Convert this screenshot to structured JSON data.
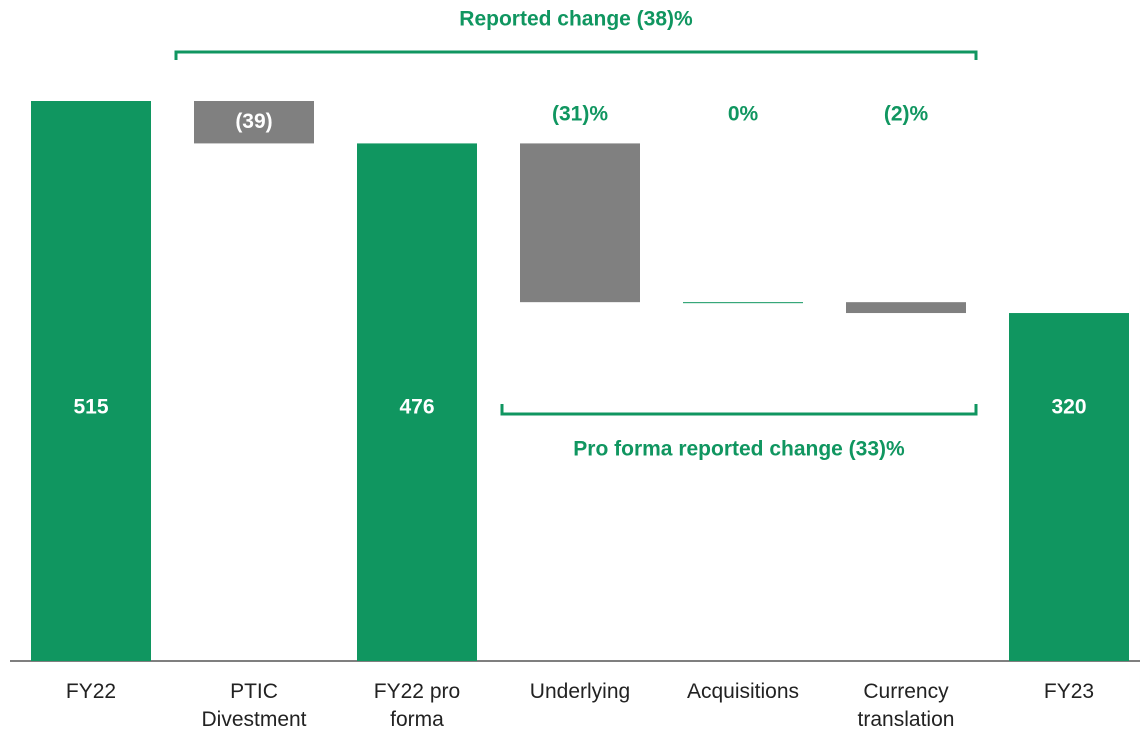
{
  "chart_data": {
    "type": "waterfall",
    "categories": [
      "FY22",
      "PTIC Divestment",
      "FY22 pro forma",
      "Underlying",
      "Acquisitions",
      "Currency translation",
      "FY23"
    ],
    "values": [
      515,
      -39,
      476,
      -146,
      0,
      -10,
      320
    ],
    "measures": [
      "total",
      "relative",
      "total",
      "relative",
      "relative",
      "relative",
      "total"
    ],
    "value_labels": [
      "515",
      "(39)",
      "476",
      null,
      null,
      null,
      "320"
    ],
    "change_labels": [
      null,
      null,
      null,
      "(31)%",
      "0%",
      "(2)%",
      null
    ],
    "colors": {
      "total": "#109660",
      "relative": "#808080"
    },
    "annotations": [
      "Reported change (38)%",
      "Pro forma reported change (33)%"
    ]
  }
}
